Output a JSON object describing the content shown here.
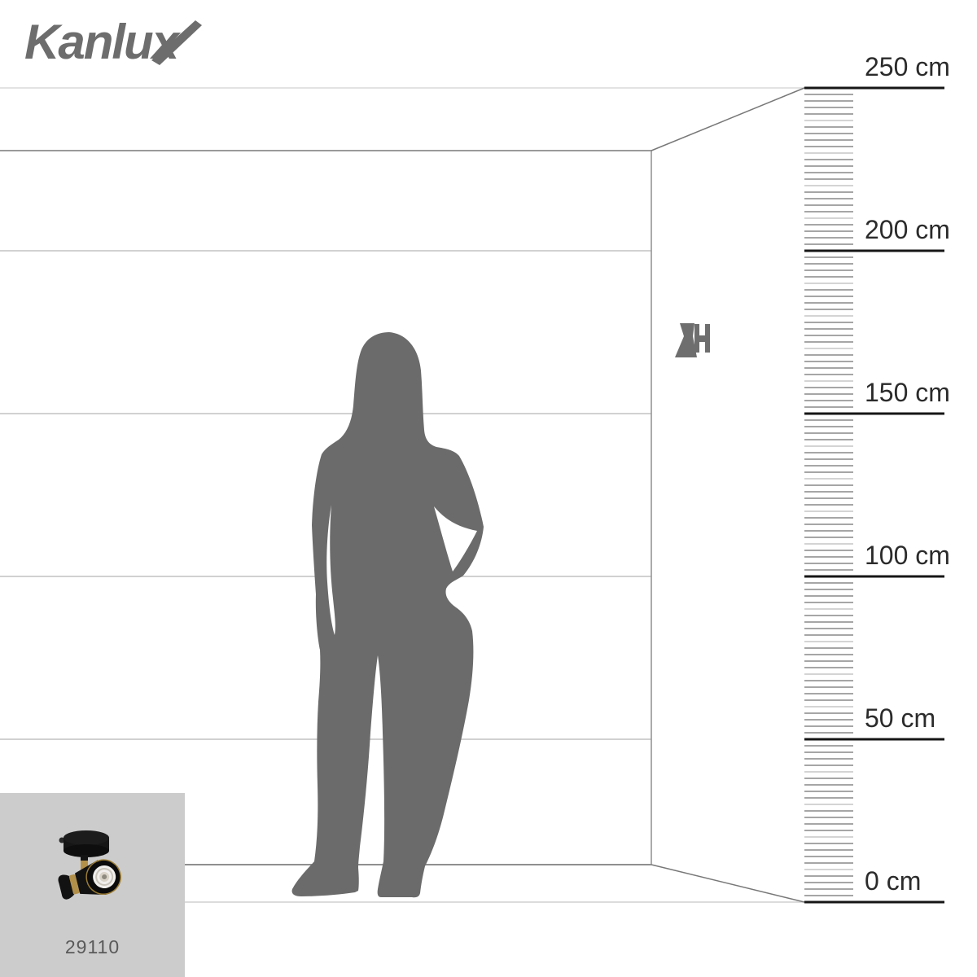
{
  "brand": {
    "name": "Kanlux"
  },
  "product": {
    "code": "29110",
    "description": "black and gold single ceiling spotlight thumbnail"
  },
  "ruler": {
    "unit": "cm",
    "major_labels": [
      "250 cm",
      "200 cm",
      "150 cm",
      "100 cm",
      "50 cm",
      "0 cm"
    ],
    "major_values_cm": [
      250,
      200,
      150,
      100,
      50,
      0
    ],
    "minor_step_cm": 2,
    "range_cm": [
      0,
      250
    ]
  },
  "scene": {
    "figure": "standing woman silhouette, hand on hip",
    "wall_item": "wall-mounted spotlight pictogram"
  },
  "colors": {
    "logo_gray": "#6d6d6d",
    "silhouette_gray": "#6b6b6b",
    "icon_gray": "#6e6e6e",
    "ruler_line": "#161616",
    "label_text": "#2b2b2b",
    "box_background": "#cccccc",
    "wall_line_light": "#c2c2c2",
    "wall_line_dark": "#9a9a9a"
  }
}
